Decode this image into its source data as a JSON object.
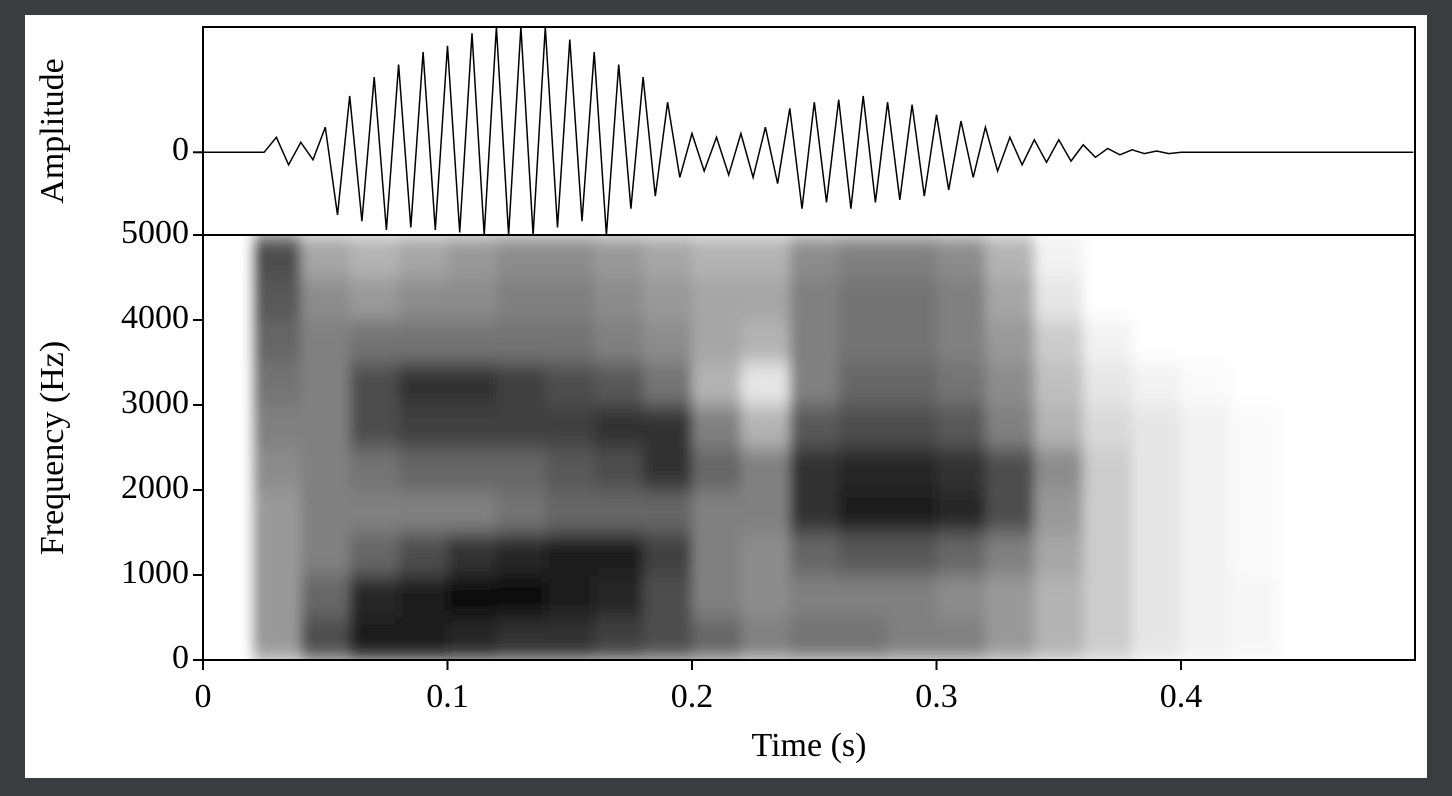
{
  "chart_data": [
    {
      "type": "line",
      "ylabel": "Amplitude",
      "color": "#000000",
      "xlim": [
        0,
        0.4957
      ],
      "ylim": [
        -0.66,
        1
      ],
      "yticks": [
        0
      ],
      "x": [
        0,
        0.005,
        0.01,
        0.015,
        0.02,
        0.025,
        0.03,
        0.035,
        0.04,
        0.045,
        0.05,
        0.055,
        0.06,
        0.065,
        0.07,
        0.075,
        0.08,
        0.085,
        0.09,
        0.095,
        0.1,
        0.105,
        0.11,
        0.115,
        0.12,
        0.125,
        0.13,
        0.135,
        0.14,
        0.145,
        0.15,
        0.155,
        0.16,
        0.165,
        0.17,
        0.175,
        0.18,
        0.185,
        0.19,
        0.195,
        0.2,
        0.205,
        0.21,
        0.215,
        0.22,
        0.225,
        0.23,
        0.235,
        0.24,
        0.245,
        0.25,
        0.255,
        0.26,
        0.265,
        0.27,
        0.275,
        0.28,
        0.285,
        0.29,
        0.295,
        0.3,
        0.305,
        0.31,
        0.315,
        0.32,
        0.325,
        0.33,
        0.335,
        0.34,
        0.345,
        0.35,
        0.355,
        0.36,
        0.365,
        0.37,
        0.375,
        0.38,
        0.385,
        0.39,
        0.395,
        0.4,
        0.405,
        0.41,
        0.415,
        0.42,
        0.425,
        0.43,
        0.435,
        0.44,
        0.445,
        0.45,
        0.455,
        0.46,
        0.465,
        0.47,
        0.475,
        0.48,
        0.485,
        0.49,
        0.495
      ],
      "values": [
        0,
        0,
        0,
        0,
        0,
        0,
        0.12,
        -0.1,
        0.08,
        -0.06,
        0.2,
        -0.5,
        0.45,
        -0.55,
        0.6,
        -0.62,
        0.7,
        -0.6,
        0.8,
        -0.62,
        0.85,
        -0.64,
        0.95,
        -0.66,
        1,
        -0.66,
        1,
        -0.66,
        1,
        -0.6,
        0.9,
        -0.55,
        0.8,
        -0.66,
        0.7,
        -0.45,
        0.6,
        -0.35,
        0.4,
        -0.2,
        0.15,
        -0.15,
        0.12,
        -0.18,
        0.15,
        -0.2,
        0.2,
        -0.25,
        0.35,
        -0.45,
        0.4,
        -0.4,
        0.42,
        -0.45,
        0.45,
        -0.4,
        0.4,
        -0.38,
        0.38,
        -0.35,
        0.3,
        -0.3,
        0.25,
        -0.2,
        0.2,
        -0.15,
        0.12,
        -0.1,
        0.1,
        -0.08,
        0.1,
        -0.07,
        0.06,
        -0.04,
        0.03,
        -0.02,
        0.02,
        -0.01,
        0.01,
        -0.01,
        0,
        0,
        0,
        0,
        0,
        0,
        0,
        0,
        0,
        0,
        0,
        0,
        0,
        0,
        0,
        0,
        0,
        0,
        0,
        0
      ]
    },
    {
      "type": "heatmap",
      "xlabel": "Time (s)",
      "ylabel": "Frequency (Hz)",
      "colormap": [
        "#ffffff",
        "#000000"
      ],
      "xlim": [
        0,
        0.4957
      ],
      "xticks": [
        0,
        0.1,
        0.2,
        0.3,
        0.4
      ],
      "ylim": [
        0,
        5000
      ],
      "yticks": [
        0,
        1000,
        2000,
        3000,
        4000,
        5000
      ],
      "x_bins": [
        0,
        0.02,
        0.04,
        0.06,
        0.08,
        0.1,
        0.12,
        0.14,
        0.16,
        0.18,
        0.2,
        0.22,
        0.24,
        0.26,
        0.28,
        0.3,
        0.32,
        0.34,
        0.36,
        0.38,
        0.4,
        0.42,
        0.44,
        0.46,
        0.48,
        0.5
      ],
      "y_bins": [
        0,
        500,
        1000,
        1500,
        2000,
        2500,
        3000,
        3500,
        4000,
        4500,
        5000
      ],
      "z": [
        [
          0,
          0.4,
          0.7,
          0.9,
          0.9,
          0.85,
          0.8,
          0.8,
          0.75,
          0.7,
          0.6,
          0.5,
          0.55,
          0.55,
          0.5,
          0.5,
          0.4,
          0.3,
          0.2,
          0.1,
          0.05,
          0.03,
          0,
          0,
          0
        ],
        [
          0,
          0.4,
          0.6,
          0.85,
          0.9,
          0.95,
          0.95,
          0.9,
          0.85,
          0.7,
          0.5,
          0.45,
          0.5,
          0.5,
          0.5,
          0.45,
          0.4,
          0.3,
          0.2,
          0.1,
          0.05,
          0.03,
          0,
          0,
          0
        ],
        [
          0,
          0.4,
          0.5,
          0.6,
          0.7,
          0.8,
          0.85,
          0.9,
          0.9,
          0.75,
          0.5,
          0.45,
          0.6,
          0.65,
          0.65,
          0.6,
          0.5,
          0.35,
          0.2,
          0.1,
          0.05,
          0.02,
          0,
          0,
          0
        ],
        [
          0,
          0.4,
          0.5,
          0.5,
          0.5,
          0.5,
          0.55,
          0.6,
          0.6,
          0.6,
          0.5,
          0.5,
          0.8,
          0.9,
          0.9,
          0.85,
          0.7,
          0.4,
          0.2,
          0.1,
          0.05,
          0.02,
          0,
          0,
          0
        ],
        [
          0,
          0.45,
          0.5,
          0.55,
          0.6,
          0.6,
          0.6,
          0.65,
          0.7,
          0.8,
          0.6,
          0.5,
          0.8,
          0.85,
          0.85,
          0.8,
          0.7,
          0.45,
          0.2,
          0.1,
          0.05,
          0.02,
          0,
          0,
          0
        ],
        [
          0,
          0.5,
          0.5,
          0.7,
          0.75,
          0.75,
          0.75,
          0.75,
          0.8,
          0.8,
          0.5,
          0.3,
          0.65,
          0.7,
          0.7,
          0.65,
          0.5,
          0.3,
          0.15,
          0.1,
          0.05,
          0.02,
          0,
          0,
          0
        ],
        [
          0,
          0.55,
          0.5,
          0.7,
          0.8,
          0.8,
          0.75,
          0.7,
          0.65,
          0.55,
          0.3,
          0.1,
          0.5,
          0.6,
          0.6,
          0.55,
          0.45,
          0.25,
          0.1,
          0.05,
          0.02,
          0,
          0,
          0,
          0
        ],
        [
          0,
          0.6,
          0.5,
          0.55,
          0.55,
          0.55,
          0.55,
          0.55,
          0.5,
          0.45,
          0.35,
          0.3,
          0.5,
          0.55,
          0.55,
          0.5,
          0.4,
          0.2,
          0.05,
          0,
          0,
          0,
          0,
          0,
          0
        ],
        [
          0,
          0.65,
          0.45,
          0.4,
          0.45,
          0.45,
          0.5,
          0.5,
          0.45,
          0.4,
          0.35,
          0.35,
          0.5,
          0.55,
          0.55,
          0.5,
          0.35,
          0.1,
          0,
          0,
          0,
          0,
          0,
          0,
          0
        ],
        [
          0,
          0.7,
          0.35,
          0.3,
          0.35,
          0.4,
          0.45,
          0.45,
          0.4,
          0.35,
          0.3,
          0.3,
          0.45,
          0.5,
          0.5,
          0.45,
          0.3,
          0.05,
          0,
          0,
          0,
          0,
          0,
          0,
          0
        ]
      ]
    }
  ]
}
